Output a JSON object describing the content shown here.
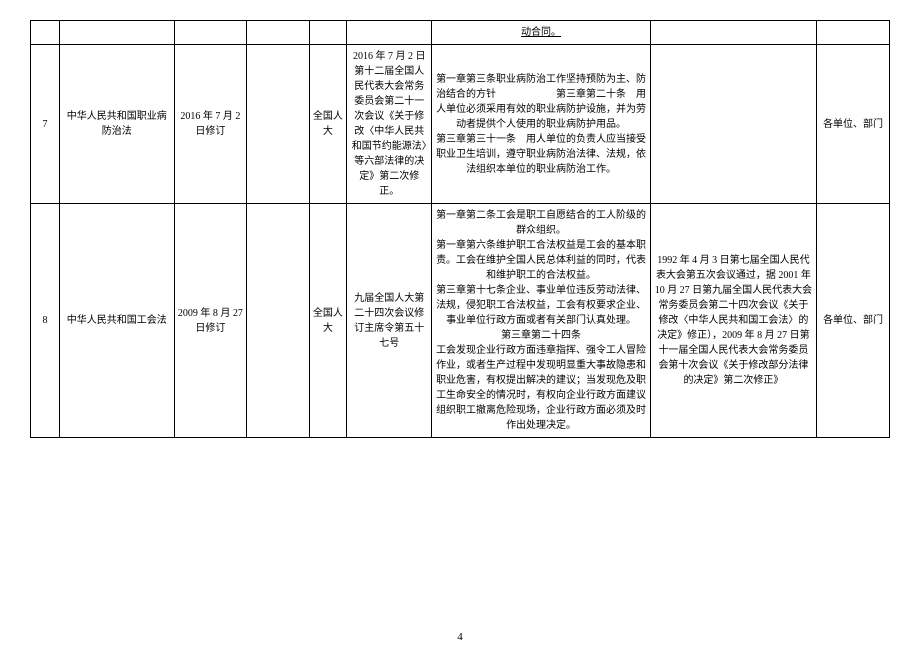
{
  "page_number": "4",
  "row_top": {
    "col7_underlined": "动合同。"
  },
  "row7": {
    "idx": "7",
    "title": "中华人民共和国职业病防治法",
    "date": "2016 年 7 月 2 日修订",
    "col4": "",
    "authority": "全国人大",
    "source": "2016 年 7 月 2 日第十二届全国人民代表大会常务委员会第二十一次会议《关于修改〈中华人民共和国节约能源法〉等六部法律的决定》第二次修正。",
    "excerpt": "第一章第三条职业病防治工作坚持预防为主、防治结合的方针　　　　　　第三章第二十条　用人单位必须采用有效的职业病防护设施，并为劳动者提供个人使用的职业病防护用品。\n第三章第三十一条　用人单位的负责人应当接受职业卫生培训，遵守职业病防治法律、法规，依法组织本单位的职业病防治工作。",
    "note": "",
    "scope": "各单位、部门"
  },
  "row8": {
    "idx": "8",
    "title": "中华人民共和国工会法",
    "date": "2009 年 8 月 27 日修订",
    "col4": "",
    "authority": "全国人大",
    "source": "九届全国人大第二十四次会议修订主席令第五十七号",
    "excerpt": "第一章第二条工会是职工自愿结合的工人阶级的群众组织。\n第一章第六条维护职工合法权益是工会的基本职责。工会在维护全国人民总体利益的同时，代表和维护职工的合法权益。\n第三章第十七条企业、事业单位违反劳动法律、法规，侵犯职工合法权益，工会有权要求企业、事业单位行政方面或者有关部门认真处理。\n第三章第二十四条\n工会发现企业行政方面违章指挥、强令工人冒险作业，或者生产过程中发现明显重大事故隐患和职业危害，有权提出解决的建议；当发现危及职工生命安全的情况时，有权向企业行政方面建议组织职工撤离危险现场，企业行政方面必须及时作出处理决定。",
    "note": "1992 年 4 月 3 日第七届全国人民代表大会第五次会议通过，据 2001 年 10 月 27 日第九届全国人民代表大会常务委员会第二十四次会议《关于修改〈中华人民共和国工会法〉的决定》修正），2009 年 8 月 27 日第十一届全国人民代表大会常务委员会第十次会议《关于修改部分法律的决定》第二次修正》",
    "scope": "各单位、部门"
  }
}
